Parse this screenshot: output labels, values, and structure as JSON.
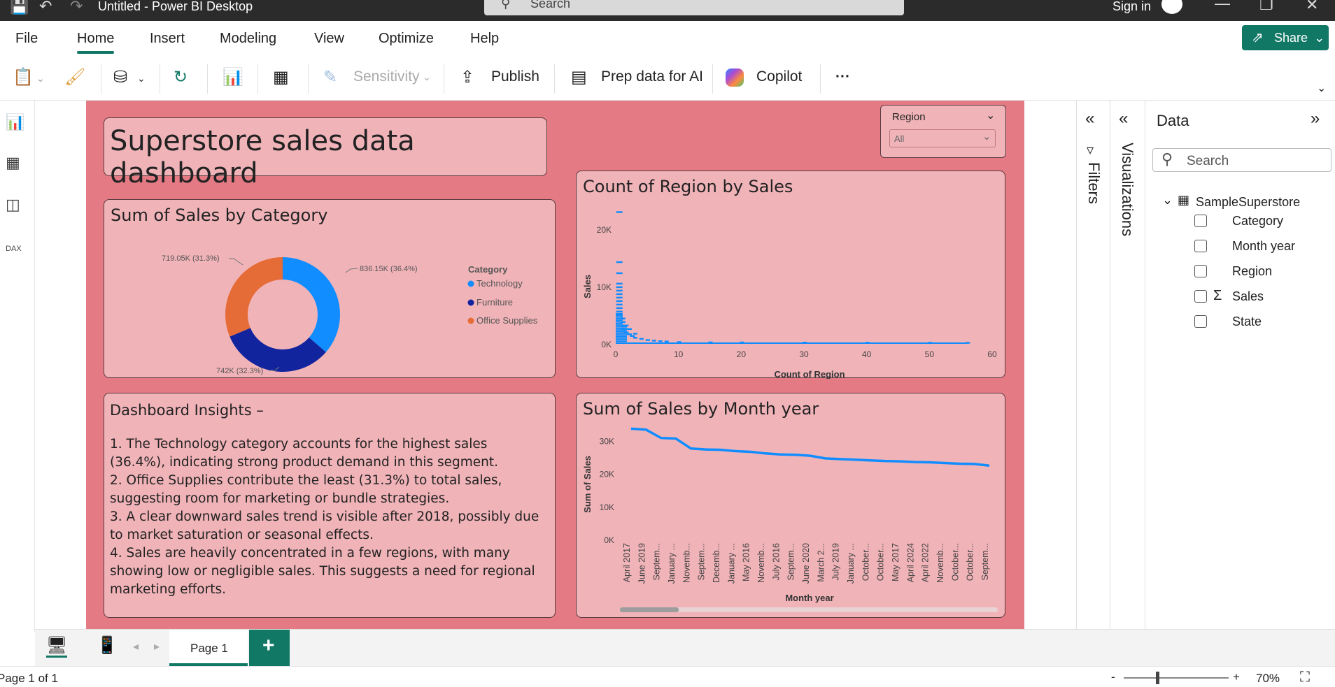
{
  "window": {
    "title": "Untitled - Power BI Desktop",
    "search_placeholder": "Search",
    "sign_in": "Sign in"
  },
  "menu": {
    "file": "File",
    "home": "Home",
    "insert": "Insert",
    "modeling": "Modeling",
    "view": "View",
    "optimize": "Optimize",
    "help": "Help",
    "share": "Share"
  },
  "ribbon": {
    "sensitivity": "Sensitivity",
    "publish": "Publish",
    "prep_ai": "Prep data for AI",
    "copilot": "Copilot",
    "more": "···"
  },
  "slicer": {
    "title": "Region",
    "value": "All"
  },
  "title_card": {
    "text": "Superstore sales data dashboard"
  },
  "donut": {
    "title": "Sum of Sales by Category",
    "legend_title": "Category",
    "labels": {
      "technology": "836.15K (36.4%)",
      "furniture": "742K (32.3%)",
      "office": "719.05K (31.3%)"
    },
    "legend": {
      "technology": "Technology",
      "furniture": "Furniture",
      "office": "Office Supplies"
    }
  },
  "insights": {
    "title": "Dashboard Insights –",
    "p1": "1. The Technology category accounts for the highest sales (36.4%), indicating strong product demand in this segment.",
    "p2": "2. Office Supplies contribute the least (31.3%) to total sales, suggesting room for marketing or bundle strategies.",
    "p3": "3. A clear downward sales trend is visible after 2018, possibly due to market saturation or seasonal effects.",
    "p4": "4. Sales are heavily concentrated in a few regions, with many showing low or negligible sales. This suggests a need for regional marketing efforts."
  },
  "histogram": {
    "title": "Count of Region by Sales",
    "ylabel": "Sales",
    "xlabel": "Count of Region"
  },
  "line": {
    "title": "Sum of Sales by Month year",
    "ylabel": "Sum of Sales",
    "xlabel": "Month year"
  },
  "panes": {
    "filters": "Filters",
    "visualizations": "Visualizations",
    "data_title": "Data",
    "data_search": "Search",
    "table": "SampleSuperstore"
  },
  "fields": {
    "category": "Category",
    "month_year": "Month year",
    "region": "Region",
    "sales": "Sales",
    "state": "State"
  },
  "pages": {
    "page1": "Page 1",
    "add": "+"
  },
  "status": {
    "page_info": "Page 1 of 1",
    "zoom": "70%",
    "minus": "-",
    "plus": "+"
  },
  "colors": {
    "technology": "#118dff",
    "furniture": "#12239e",
    "office": "#e66c37",
    "accent": "#117865"
  },
  "chart_data": [
    {
      "type": "pie",
      "title": "Sum of Sales by Category",
      "categories": [
        "Technology",
        "Furniture",
        "Office Supplies"
      ],
      "values": [
        836.15,
        742.0,
        719.05
      ],
      "percents": [
        36.4,
        32.3,
        31.3
      ],
      "unit": "K",
      "legend": "right"
    },
    {
      "type": "scatter",
      "title": "Count of Region by Sales",
      "xlabel": "Count of Region",
      "ylabel": "Sales",
      "xticks": [
        "0",
        "10",
        "20",
        "30",
        "40",
        "50",
        "60"
      ],
      "yticks": [
        "0K",
        "10K",
        "20K"
      ],
      "xlim": [
        0,
        60
      ],
      "ylim": [
        0,
        25000
      ],
      "x": [
        0.3,
        0.3,
        0.3,
        0.3,
        0.3,
        0.3,
        0.3,
        0.3,
        0.3,
        0.3,
        0.3,
        0.3,
        0.3,
        1,
        1,
        1,
        1,
        1.5,
        1.5,
        2,
        2,
        2.5,
        3,
        3,
        4,
        5,
        6,
        7,
        8,
        10,
        15,
        20,
        30,
        40,
        50,
        56
      ],
      "y": [
        22500,
        13900,
        12000,
        10200,
        9600,
        9000,
        8400,
        7800,
        7200,
        6600,
        6000,
        5400,
        4800,
        4200,
        3600,
        3000,
        2400,
        3000,
        1800,
        2400,
        1500,
        1200,
        1600,
        900,
        700,
        500,
        400,
        300,
        250,
        150,
        100,
        80,
        60,
        50,
        40,
        30
      ]
    },
    {
      "type": "line",
      "title": "Sum of Sales by Month year",
      "xlabel": "Month year",
      "ylabel": "Sum of Sales",
      "categories": [
        "April 2017",
        "June 2019",
        "Septem...",
        "January ...",
        "Novemb...",
        "Septem...",
        "Decemb...",
        "January ...",
        "May 2016",
        "Novemb...",
        "July 2016",
        "Septem...",
        "June 2020",
        "March 2...",
        "July 2019",
        "January ...",
        "October...",
        "October...",
        "May 2017",
        "April 2024",
        "April 2022",
        "Novemb...",
        "October...",
        "October...",
        "Septem..."
      ],
      "values": [
        33800,
        33500,
        31000,
        30800,
        27800,
        27500,
        27400,
        27000,
        26800,
        26300,
        26000,
        25900,
        25600,
        24800,
        24600,
        24400,
        24200,
        24000,
        23900,
        23700,
        23600,
        23400,
        23200,
        23100,
        22600
      ],
      "yticks": [
        "0K",
        "10K",
        "20K",
        "30K"
      ],
      "ylim": [
        0,
        36000
      ]
    }
  ]
}
